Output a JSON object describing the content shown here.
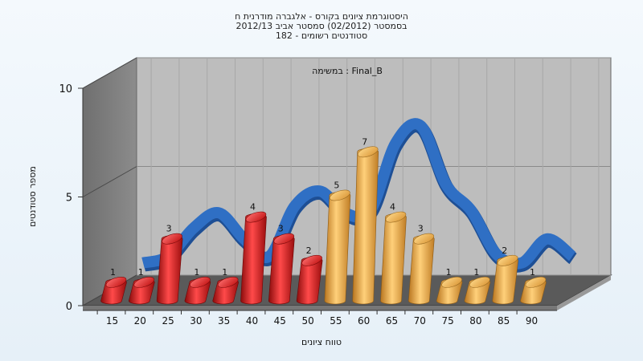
{
  "chart_data": {
    "type": "bar",
    "title_lines": [
      "היסטוגרמת ציונים בקורס - אלגברה מודרנית ח",
      "בסמסטר  (02/2012)  סמסטר אביב 2012/13",
      "סטודנטים רשומים - 182"
    ],
    "annotation": "במשימה : Final_B",
    "xlabel": "טווח ציונים",
    "ylabel": "מספר סטודנטים",
    "ylim": [
      0,
      10
    ],
    "yticks": [
      0,
      5,
      10
    ],
    "categories": [
      "15",
      "20",
      "25",
      "30",
      "35",
      "40",
      "45",
      "50",
      "55",
      "60",
      "65",
      "70",
      "75",
      "80",
      "85",
      "90"
    ],
    "values": [
      1,
      1,
      3,
      1,
      1,
      4,
      3,
      2,
      5,
      7,
      4,
      3,
      1,
      1,
      2,
      1
    ],
    "curve_values": [
      1.6,
      1.9,
      3.2,
      3.9,
      2.7,
      1.9,
      4.2,
      4.9,
      3.9,
      4.0,
      7.1,
      7.9,
      5.2,
      4.0,
      2.0,
      1.6,
      2.7,
      1.9
    ],
    "colors": {
      "red_bar": "#e01515",
      "orange_bar": "#e8a032",
      "curve": "#2f6fc4",
      "wall": "#b9b9b9",
      "side_wall": "#7a7a7a",
      "floor": "#555555"
    },
    "bar_color_split_index": 8,
    "grid": true
  }
}
